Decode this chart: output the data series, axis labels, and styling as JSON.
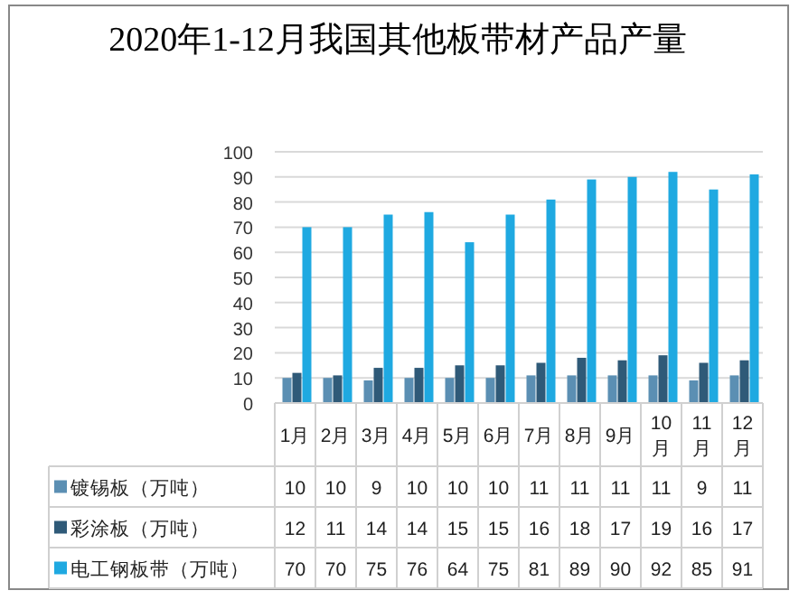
{
  "chart_data": {
    "type": "bar",
    "title": "2020年1-12月我国其他板带材产品产量",
    "categories": [
      "1月",
      "2月",
      "3月",
      "4月",
      "5月",
      "6月",
      "7月",
      "8月",
      "9月",
      "10月",
      "11月",
      "12月"
    ],
    "series": [
      {
        "name": "镀锡板（万吨）",
        "color": "#5b8fb3",
        "values": [
          10,
          10,
          9,
          10,
          10,
          10,
          11,
          11,
          11,
          11,
          9,
          11
        ]
      },
      {
        "name": "彩涂板（万吨）",
        "color": "#2f5a78",
        "values": [
          12,
          11,
          14,
          14,
          15,
          15,
          16,
          18,
          17,
          19,
          16,
          17
        ]
      },
      {
        "name": "电工钢板带（万吨）",
        "color": "#1fa9e1",
        "values": [
          70,
          70,
          75,
          76,
          64,
          75,
          81,
          89,
          90,
          92,
          85,
          91
        ]
      }
    ],
    "ylim": [
      0,
      100
    ],
    "yticks": [
      0,
      10,
      20,
      30,
      40,
      50,
      60,
      70,
      80,
      90,
      100
    ],
    "grid": "y",
    "data_labels": true,
    "legend": "bottom"
  }
}
